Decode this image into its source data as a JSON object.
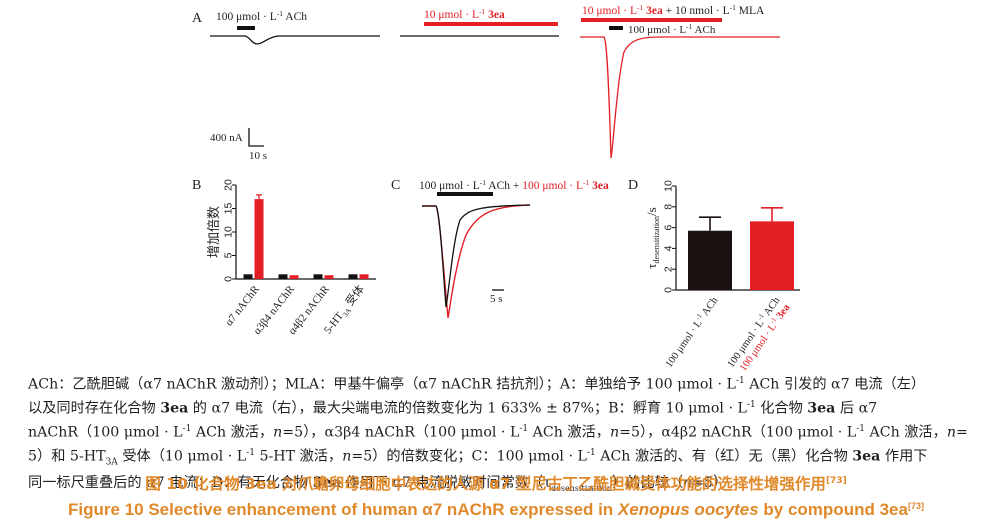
{
  "panel_labels": {
    "a": "A",
    "b": "B",
    "c": "C",
    "d": "D"
  },
  "panel_a": {
    "label_ach": "100 μmol · L",
    "label_ach_sup": "-1",
    "label_ach_tail": " ACh",
    "label_3ea": "10 μmol · L",
    "label_3ea_sup": "-1",
    "label_3ea_tail": " 3ea",
    "label_combo_red": "10 μmol · L",
    "label_combo_red_sup": "-1",
    "label_combo_red_tail": " 3ea",
    "label_combo_mla": " + 10 nmol · L",
    "label_combo_mla_sup": "-1",
    "label_combo_mla_tail": " MLA",
    "label_combo_ach": "100 μmol · L",
    "label_combo_ach_sup": "-1",
    "label_combo_ach_tail": " ACh",
    "scale_current": "400 nA",
    "scale_time": "10 s"
  },
  "panel_c": {
    "label_ach": "100 μmol · L",
    "label_ach_sup": "-1",
    "label_ach_tail": " ACh + ",
    "label_3ea": "100 μmol · L",
    "label_3ea_sup": "-1",
    "label_3ea_tail": " 3ea",
    "scale_time": "5 s"
  },
  "chart_data": [
    {
      "panel": "B",
      "type": "bar",
      "ylabel": "增加倍数",
      "ylim": [
        0,
        20
      ],
      "yticks": [
        "0",
        "5",
        "10",
        "15",
        "20"
      ],
      "categories": [
        "α7 nAChR",
        "α3β4 nAChR",
        "α4β2 nAChR",
        "5-HT3A 受体"
      ],
      "category_labels": [
        {
          "main": "α7 nAChR",
          "sub": ""
        },
        {
          "main": "α3β4 nAChR",
          "sub": ""
        },
        {
          "main": "α4β2 nAChR",
          "sub": ""
        },
        {
          "main": "5-HT",
          "sub": "3A",
          "tail": " 受体"
        }
      ],
      "series": [
        {
          "color": "#111111",
          "values": [
            1.0,
            1.0,
            1.0,
            1.0
          ],
          "errors": [
            0,
            0,
            0,
            0
          ]
        },
        {
          "color": "#e31e25",
          "values": [
            17.0,
            0.8,
            0.8,
            1.0
          ],
          "errors": [
            0.9,
            0,
            0,
            0
          ]
        }
      ]
    },
    {
      "panel": "D",
      "type": "bar",
      "ylabel": "τ",
      "ylabel_sub": "desensitization",
      "ylabel_tail": "/s",
      "ylim": [
        0,
        10
      ],
      "yticks": [
        "0",
        "2",
        "4",
        "6",
        "8",
        "10"
      ],
      "categories": [
        "100 μmol · L-1 ACh",
        "100 μmol · L-1 ACh + 100 μmol · L-1 3ea"
      ],
      "category_labels": [
        {
          "line1": "100 μmol · L",
          "line1_sup": "-1",
          "line1_tail": " ACh",
          "line2": "",
          "line2_red": ""
        },
        {
          "line1": "100 μmol · L",
          "line1_sup": "-1",
          "line1_tail": " ACh",
          "line2": "+ 100 μmol · L",
          "line2_sup": "-1",
          "line2_tail": " 3ea"
        }
      ],
      "values": [
        5.7,
        6.6
      ],
      "errors": [
        1.3,
        1.3
      ],
      "colors": [
        "#1a1110",
        "#e31e25"
      ]
    }
  ],
  "legend": {
    "l1": "ACh：乙酰胆碱（α7 nAChR 激动剂）；MLA：甲基牛偏亭（α7 nAChR 拮抗剂）；A：单独给予 100 μmol · L",
    "l1_sup": "-1",
    "l1_tail": " ACh 引发的 α7 电流（左）",
    "l2a": "以及同时存在化合物 ",
    "l2_3ea": "3ea",
    "l2b": " 的 α7 电流（右），最大尖端电流的倍数变化为 1 633% ± 87%；B：孵育 10 μmol · L",
    "l2_sup": "-1",
    "l2c": " 化合物 ",
    "l2_3ea_b": "3ea",
    "l2d": " 后 α7",
    "l3a": "nAChR（100 μmol · L",
    "l3_sup": "-1",
    "l3b": " ACh 激活，",
    "l3_n1": "n",
    "l3c": "=5），α3β4 nAChR（100 μmol · L",
    "l3_sup2": "-1",
    "l3d": " ACh 激活，",
    "l3_n2": "n",
    "l3e": "=5），α4β2 nAChR（100 μmol · L",
    "l3_sup3": "-1",
    "l3f": " ACh 激活，",
    "l3_n3": "n",
    "l3g": "=",
    "l4a": "5）和 5-HT",
    "l4_sub": "3A",
    "l4b": " 受体（10 μmol · L",
    "l4_sup": "-1",
    "l4c": " 5-HT 激活，",
    "l4_n": "n",
    "l4d": "=5）的倍数变化；C：100 μmol · L",
    "l4_sup2": "-1",
    "l4e": " ACh 激活的、有（红）无（黑）化合物 ",
    "l4_3ea": "3ea",
    "l4f": " 作用下",
    "l5a": "同一标尺重叠后的 α7 电流；D：有无化合物 ",
    "l5_3ea": "3ea",
    "l5b": " 作用下 α7 电流脱敏时间常数（τ",
    "l5_sub": "desensitization",
    "l5c": "）的比较（",
    "l5_n": "n",
    "l5d": "=5）"
  },
  "caption_zh": {
    "prefix": "图 10  化合物 ",
    "compound": "3ea",
    "suffix": " 对爪蟾卵母细胞中表达的人源 α7 型尼古丁乙酰胆碱受体功能的选择性增强作用",
    "ref": "[73]"
  },
  "caption_en": {
    "prefix": "Figure 10  Selective enhancement of human α7 nAChR expressed in ",
    "italic": "Xenopus oocytes",
    "middle": " by compound ",
    "compound": "3ea",
    "ref": "[73]"
  },
  "colors": {
    "red": "#e31e25",
    "black": "#111111",
    "caption": "#e0892a"
  }
}
